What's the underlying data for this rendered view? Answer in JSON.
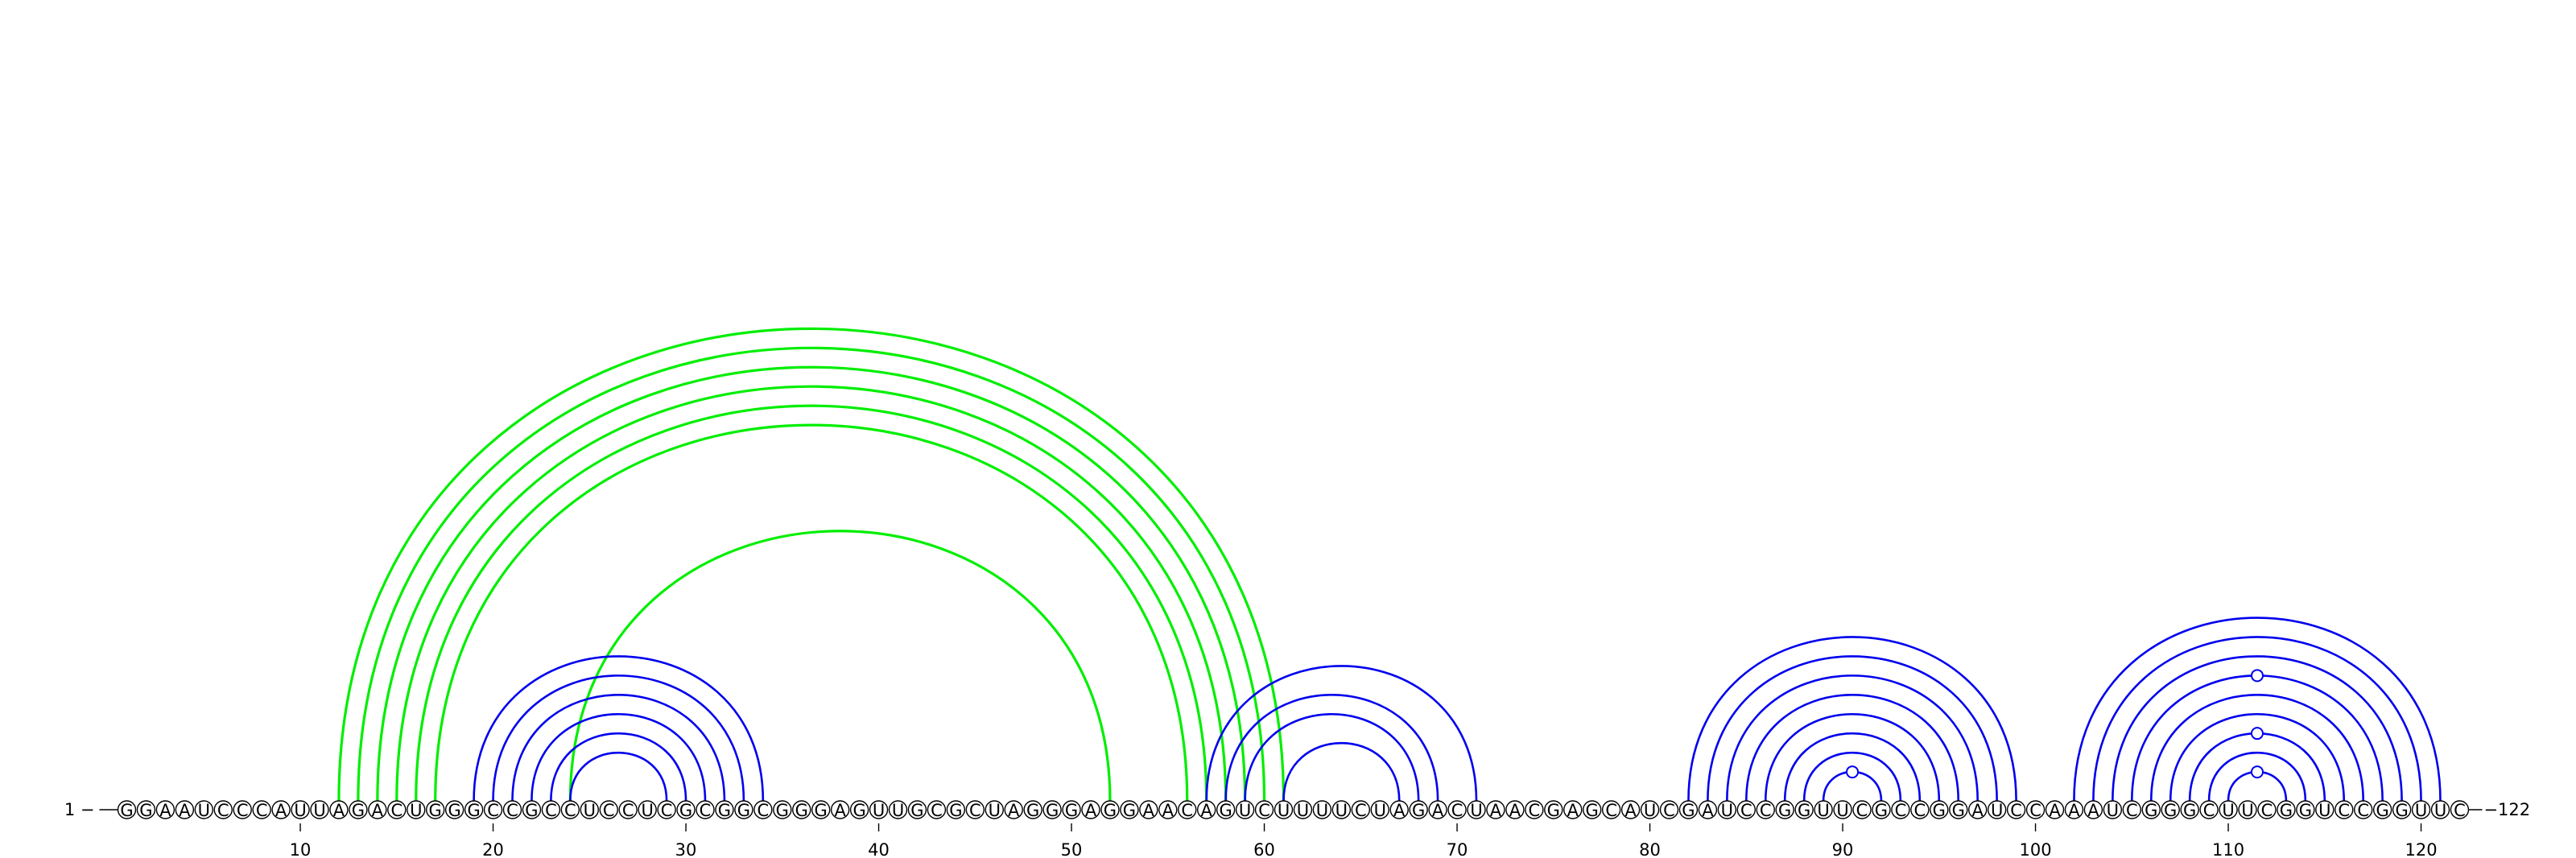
{
  "diagram": {
    "sequence": "GGAAUCCCAUUAGACUGGGCCGCCUCCUCGCGGCGGGAGUUGCGCUAGGGAGGAACAGUCUUUUCUAGACUAACGAGCAUCGAUCCGGUUCGCCGGAUCCAAAUCGGGCUUCGGUCCGGUUC",
    "start_label": "1",
    "end_label": "122",
    "ticks": [
      10,
      20,
      30,
      40,
      50,
      60,
      70,
      80,
      90,
      100,
      110,
      120
    ],
    "colors": {
      "pair_arc": "#0000ee",
      "pseudoknot_arc": "#00ee00",
      "marker": "#0000ee"
    },
    "pairs": [
      [
        19,
        34
      ],
      [
        20,
        33
      ],
      [
        21,
        32
      ],
      [
        22,
        31
      ],
      [
        23,
        30
      ],
      [
        24,
        29
      ],
      [
        57,
        71
      ],
      [
        58,
        69
      ],
      [
        59,
        68
      ],
      [
        61,
        67
      ],
      [
        82,
        99
      ],
      [
        83,
        98
      ],
      [
        84,
        97
      ],
      [
        85,
        96
      ],
      [
        86,
        95
      ],
      [
        87,
        94
      ],
      [
        88,
        93
      ],
      [
        89,
        92
      ],
      [
        102,
        121
      ],
      [
        103,
        120
      ],
      [
        104,
        119
      ],
      [
        105,
        118
      ],
      [
        106,
        117
      ],
      [
        107,
        116
      ],
      [
        108,
        115
      ],
      [
        109,
        114
      ],
      [
        110,
        113
      ]
    ],
    "pseudoknots": [
      [
        12,
        61
      ],
      [
        13,
        60
      ],
      [
        14,
        59
      ],
      [
        15,
        58
      ],
      [
        16,
        57
      ],
      [
        17,
        56
      ],
      [
        24,
        52
      ]
    ],
    "markers": [
      {
        "pair": [
          89,
          92
        ],
        "side": "apex"
      },
      {
        "pair": [
          105,
          118
        ],
        "side": "apex"
      },
      {
        "pair": [
          108,
          115
        ],
        "side": "apex"
      },
      {
        "pair": [
          110,
          113
        ],
        "side": "apex"
      }
    ]
  }
}
